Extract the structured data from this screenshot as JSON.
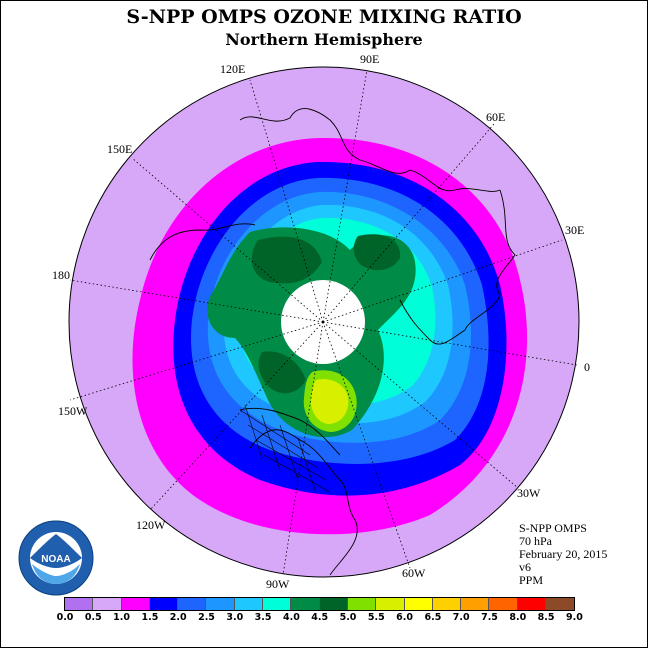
{
  "header": {
    "title": "S-NPP OMPS OZONE MIXING RATIO",
    "subtitle": "Northern Hemisphere"
  },
  "map": {
    "projection": "polar-stereographic-north",
    "longitude_labels": {
      "e90": "90E",
      "e60": "60E",
      "e30": "30E",
      "zero": "0",
      "w30": "30W",
      "w60": "60W",
      "w90": "90W",
      "w120": "120W",
      "w150": "150W",
      "date_line": "180",
      "e150": "150E",
      "e120": "120E"
    },
    "colors": {
      "background_ring": "#d8a8f8",
      "magenta_band": "#ff00ff",
      "blue_band": "#0000ff",
      "polar_void": "#ffffff"
    }
  },
  "info": {
    "instrument": "S-NPP OMPS",
    "pressure_level": "70 hPa",
    "date": "February 20, 2015",
    "version": "v6",
    "units": "PPM"
  },
  "logo": {
    "icon": "noaa-logo-icon",
    "center_text": "NOAA"
  },
  "colorbar": {
    "ticks": [
      "0.0",
      "0.5",
      "1.0",
      "1.5",
      "2.0",
      "2.5",
      "3.0",
      "3.5",
      "4.0",
      "4.5",
      "5.0",
      "5.5",
      "6.0",
      "6.5",
      "7.0",
      "7.5",
      "8.0",
      "8.5",
      "9.0"
    ],
    "colors": [
      "#b070f0",
      "#d8a8f8",
      "#ff00ff",
      "#0000ff",
      "#1e64ff",
      "#1e96ff",
      "#1ec8ff",
      "#00ffd8",
      "#008c46",
      "#006428",
      "#80e000",
      "#d8f000",
      "#ffff00",
      "#ffd000",
      "#ffa000",
      "#ff6400",
      "#ff0000",
      "#8c4a28"
    ]
  }
}
